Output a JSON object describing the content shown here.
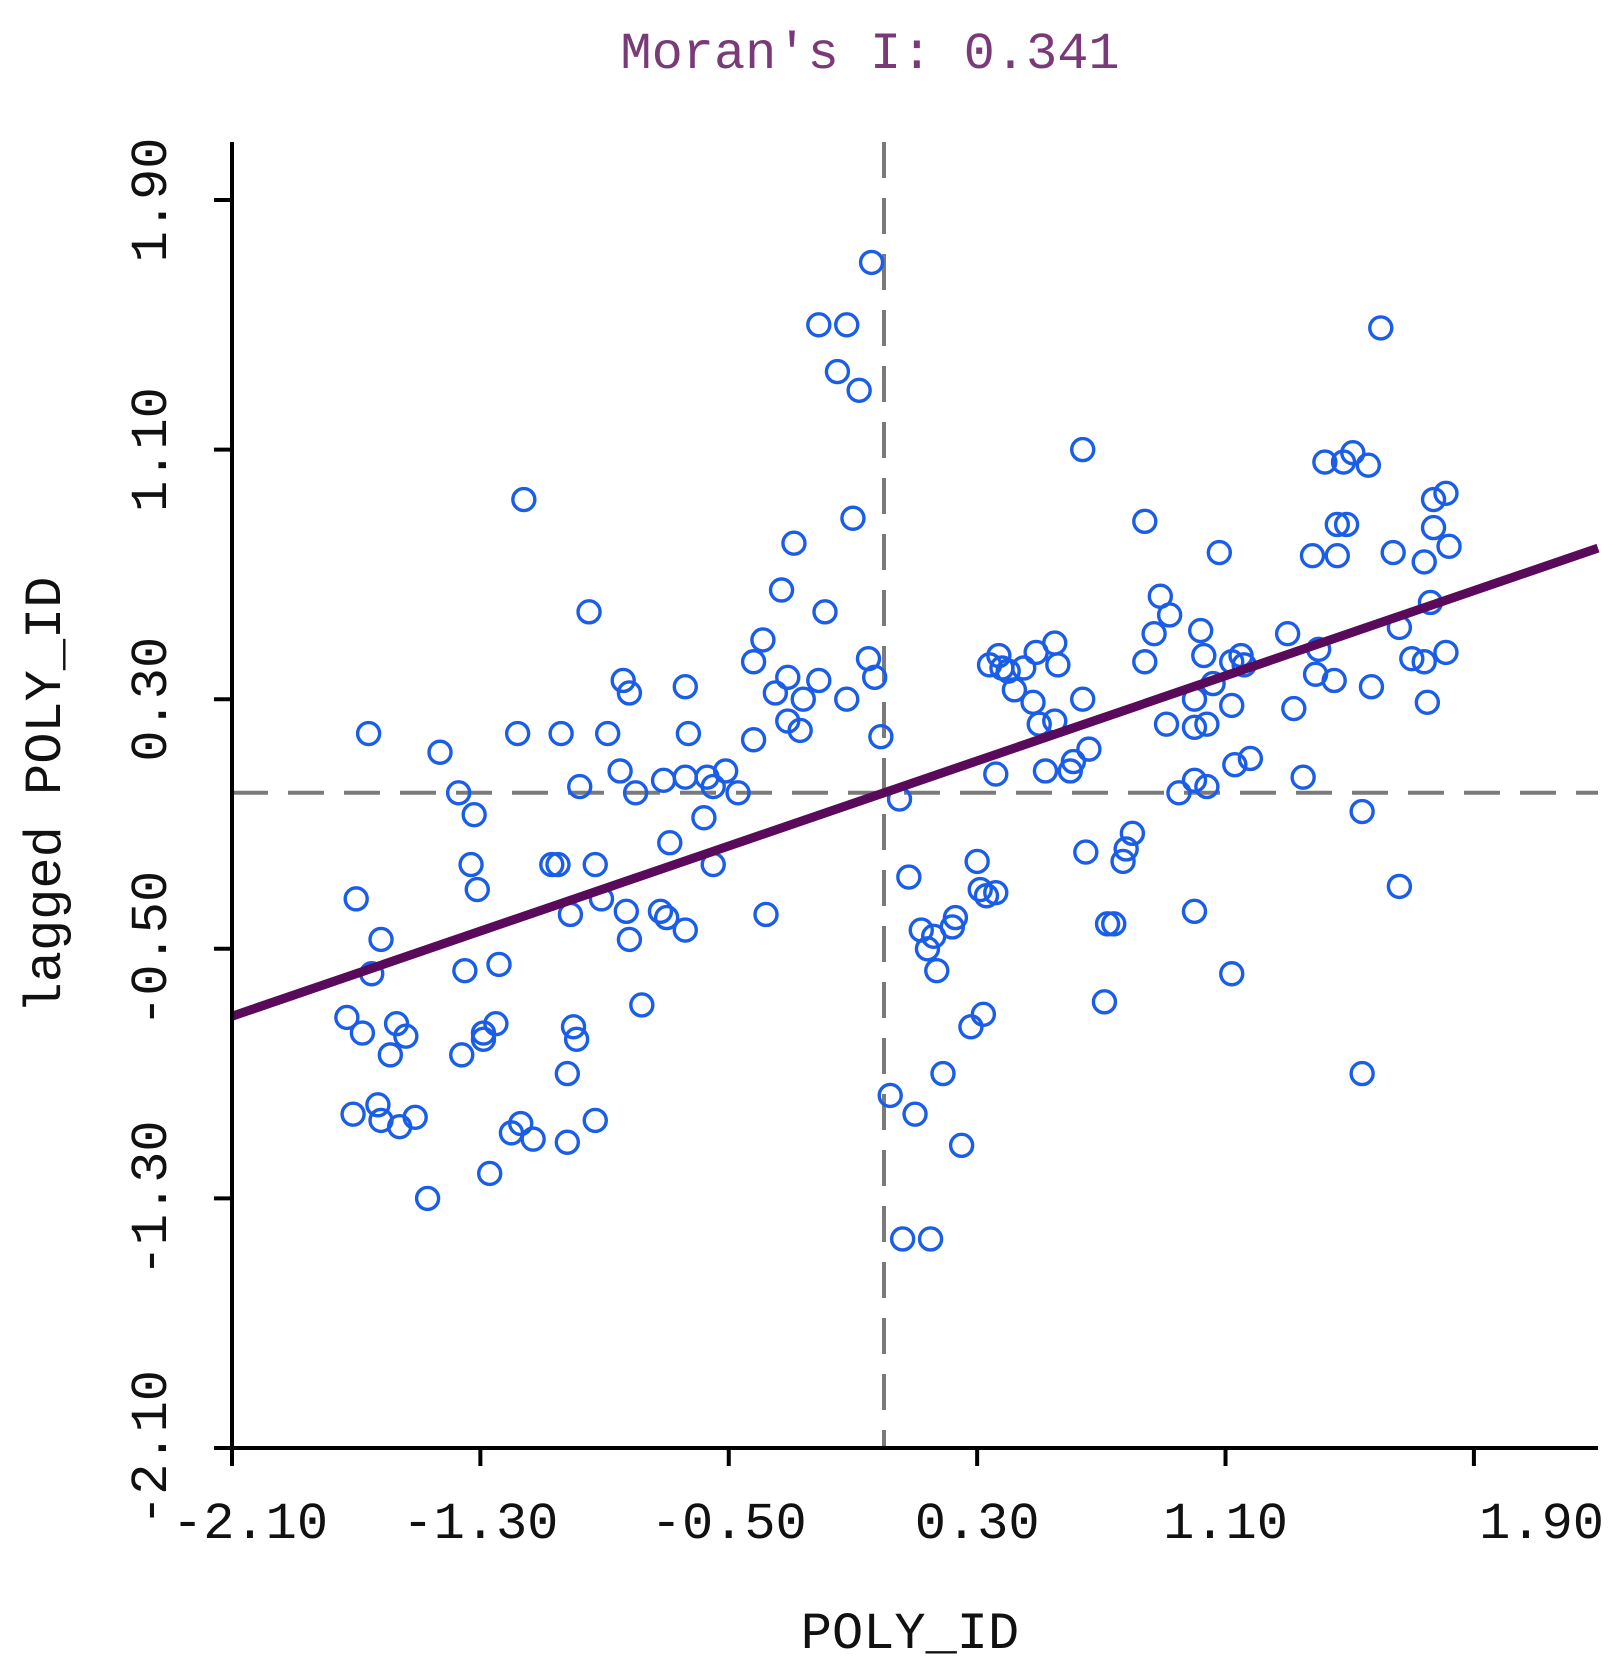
{
  "chart_data": {
    "type": "scatter",
    "title": "Moran's I: 0.341",
    "xlabel": "POLY_ID",
    "ylabel": "lagged POLY_ID",
    "x_ticks": [
      "-2.10",
      "-1.30",
      "-0.50",
      "0.30",
      "1.10",
      "1.90"
    ],
    "y_ticks": [
      "-2.10",
      "-1.30",
      "-0.50",
      "0.30",
      "1.10",
      "1.90"
    ],
    "xlim": [
      -2.1,
      2.1
    ],
    "ylim": [
      -2.1,
      1.9
    ],
    "x_zero": 0.0,
    "y_zero": 0.0,
    "regression": {
      "slope": 0.341,
      "intercept": 0.0
    },
    "colors": {
      "points": "#1a5de8",
      "fit_line": "#5a0a5a",
      "quadrant_lines": "#7a7a7a",
      "title": "#7a3a7a"
    },
    "points": [
      [
        -0.04,
        1.7
      ],
      [
        -0.21,
        1.5
      ],
      [
        -0.12,
        1.5
      ],
      [
        -0.15,
        1.35
      ],
      [
        -0.08,
        1.29
      ],
      [
        -1.16,
        0.94
      ],
      [
        -0.1,
        0.88
      ],
      [
        -0.29,
        0.8
      ],
      [
        -0.33,
        0.65
      ],
      [
        -0.19,
        0.58
      ],
      [
        -0.95,
        0.58
      ],
      [
        -0.05,
        0.43
      ],
      [
        -0.03,
        0.37
      ],
      [
        -0.42,
        0.42
      ],
      [
        -0.39,
        0.49
      ],
      [
        -0.31,
        0.37
      ],
      [
        -0.26,
        0.3
      ],
      [
        -0.35,
        0.32
      ],
      [
        -0.21,
        0.36
      ],
      [
        -0.12,
        0.3
      ],
      [
        -0.64,
        0.34
      ],
      [
        -0.84,
        0.36
      ],
      [
        -0.82,
        0.32
      ],
      [
        -1.18,
        0.19
      ],
      [
        -0.63,
        0.19
      ],
      [
        -1.04,
        0.19
      ],
      [
        -0.89,
        0.19
      ],
      [
        -0.42,
        0.17
      ],
      [
        -0.27,
        0.2
      ],
      [
        -0.31,
        0.23
      ],
      [
        -0.01,
        0.18
      ],
      [
        -1.66,
        0.19
      ],
      [
        -1.43,
        0.13
      ],
      [
        -0.85,
        0.07
      ],
      [
        -0.98,
        0.02
      ],
      [
        -0.8,
        0.0
      ],
      [
        -0.71,
        0.04
      ],
      [
        -0.64,
        0.05
      ],
      [
        -0.57,
        0.05
      ],
      [
        -0.55,
        0.02
      ],
      [
        -0.51,
        0.07
      ],
      [
        -0.47,
        0.0
      ],
      [
        -0.58,
        -0.08
      ],
      [
        -1.37,
        0.0
      ],
      [
        -1.32,
        -0.07
      ],
      [
        -0.69,
        -0.16
      ],
      [
        -1.07,
        -0.23
      ],
      [
        -1.33,
        -0.23
      ],
      [
        -1.05,
        -0.23
      ],
      [
        -0.93,
        -0.23
      ],
      [
        -0.55,
        -0.23
      ],
      [
        -1.31,
        -0.31
      ],
      [
        -1.7,
        -0.34
      ],
      [
        -0.91,
        -0.34
      ],
      [
        -0.83,
        -0.38
      ],
      [
        -0.72,
        -0.38
      ],
      [
        -0.7,
        -0.4
      ],
      [
        -1.01,
        -0.39
      ],
      [
        -0.38,
        -0.39
      ],
      [
        -0.64,
        -0.44
      ],
      [
        -1.62,
        -0.47
      ],
      [
        -0.82,
        -0.47
      ],
      [
        -1.24,
        -0.55
      ],
      [
        -1.35,
        -0.57
      ],
      [
        -1.65,
        -0.58
      ],
      [
        -0.78,
        -0.68
      ],
      [
        -1.73,
        -0.72
      ],
      [
        -1.57,
        -0.74
      ],
      [
        -1.68,
        -0.77
      ],
      [
        -1.54,
        -0.78
      ],
      [
        -1.25,
        -0.74
      ],
      [
        -1.29,
        -0.77
      ],
      [
        -1.29,
        -0.79
      ],
      [
        -1.0,
        -0.75
      ],
      [
        -0.99,
        -0.79
      ],
      [
        -1.36,
        -0.84
      ],
      [
        -1.59,
        -0.84
      ],
      [
        -1.02,
        -0.9
      ],
      [
        -1.71,
        -1.03
      ],
      [
        -1.63,
        -1.0
      ],
      [
        -1.62,
        -1.05
      ],
      [
        -1.51,
        -1.04
      ],
      [
        -1.56,
        -1.07
      ],
      [
        -0.93,
        -1.05
      ],
      [
        -1.17,
        -1.06
      ],
      [
        -1.2,
        -1.09
      ],
      [
        -1.13,
        -1.11
      ],
      [
        -1.02,
        -1.12
      ],
      [
        -1.27,
        -1.22
      ],
      [
        -1.47,
        -1.3
      ],
      [
        0.64,
        1.1
      ],
      [
        1.6,
        1.49
      ],
      [
        1.42,
        1.06
      ],
      [
        1.48,
        1.06
      ],
      [
        1.56,
        1.05
      ],
      [
        1.51,
        1.09
      ],
      [
        1.81,
        0.96
      ],
      [
        1.77,
        0.94
      ],
      [
        0.84,
        0.87
      ],
      [
        1.46,
        0.86
      ],
      [
        1.49,
        0.86
      ],
      [
        1.77,
        0.85
      ],
      [
        1.08,
        0.77
      ],
      [
        1.38,
        0.76
      ],
      [
        1.46,
        0.76
      ],
      [
        1.64,
        0.77
      ],
      [
        1.74,
        0.74
      ],
      [
        1.82,
        0.79
      ],
      [
        0.89,
        0.63
      ],
      [
        0.92,
        0.57
      ],
      [
        1.76,
        0.61
      ],
      [
        1.02,
        0.52
      ],
      [
        1.3,
        0.51
      ],
      [
        0.55,
        0.48
      ],
      [
        1.66,
        0.53
      ],
      [
        0.37,
        0.44
      ],
      [
        0.49,
        0.45
      ],
      [
        0.87,
        0.51
      ],
      [
        1.4,
        0.46
      ],
      [
        0.34,
        0.41
      ],
      [
        0.38,
        0.4
      ],
      [
        0.45,
        0.4
      ],
      [
        0.56,
        0.41
      ],
      [
        0.84,
        0.42
      ],
      [
        1.03,
        0.44
      ],
      [
        1.15,
        0.44
      ],
      [
        1.81,
        0.45
      ],
      [
        1.16,
        0.41
      ],
      [
        1.39,
        0.38
      ],
      [
        0.4,
        0.39
      ],
      [
        1.7,
        0.43
      ],
      [
        1.12,
        0.42
      ],
      [
        1.45,
        0.36
      ],
      [
        1.74,
        0.42
      ],
      [
        1.57,
        0.34
      ],
      [
        0.42,
        0.33
      ],
      [
        0.48,
        0.29
      ],
      [
        0.64,
        0.3
      ],
      [
        1.06,
        0.35
      ],
      [
        1.12,
        0.28
      ],
      [
        1.0,
        0.3
      ],
      [
        0.55,
        0.23
      ],
      [
        1.32,
        0.27
      ],
      [
        1.75,
        0.29
      ],
      [
        0.5,
        0.22
      ],
      [
        0.91,
        0.22
      ],
      [
        1.0,
        0.21
      ],
      [
        1.04,
        0.22
      ],
      [
        0.66,
        0.14
      ],
      [
        0.61,
        0.1
      ],
      [
        1.13,
        0.09
      ],
      [
        0.36,
        0.06
      ],
      [
        0.52,
        0.07
      ],
      [
        0.6,
        0.07
      ],
      [
        1.0,
        0.04
      ],
      [
        1.04,
        0.02
      ],
      [
        1.18,
        0.11
      ],
      [
        1.35,
        0.05
      ],
      [
        0.95,
        0.0
      ],
      [
        0.05,
        -0.02
      ],
      [
        1.54,
        -0.06
      ],
      [
        0.8,
        -0.13
      ],
      [
        0.78,
        -0.18
      ],
      [
        0.65,
        -0.19
      ],
      [
        0.77,
        -0.22
      ],
      [
        0.3,
        -0.22
      ],
      [
        0.08,
        -0.27
      ],
      [
        0.31,
        -0.31
      ],
      [
        0.36,
        -0.32
      ],
      [
        0.33,
        -0.33
      ],
      [
        1.66,
        -0.3
      ],
      [
        1.0,
        -0.38
      ],
      [
        0.23,
        -0.4
      ],
      [
        0.72,
        -0.42
      ],
      [
        0.74,
        -0.42
      ],
      [
        0.12,
        -0.44
      ],
      [
        0.16,
        -0.46
      ],
      [
        0.22,
        -0.43
      ],
      [
        0.14,
        -0.5
      ],
      [
        0.17,
        -0.57
      ],
      [
        1.12,
        -0.58
      ],
      [
        0.71,
        -0.67
      ],
      [
        0.32,
        -0.71
      ],
      [
        0.28,
        -0.75
      ],
      [
        1.54,
        -0.9
      ],
      [
        0.19,
        -0.9
      ],
      [
        0.02,
        -0.97
      ],
      [
        0.1,
        -1.03
      ],
      [
        0.25,
        -1.13
      ],
      [
        0.06,
        -1.43
      ],
      [
        0.15,
        -1.43
      ]
    ]
  }
}
